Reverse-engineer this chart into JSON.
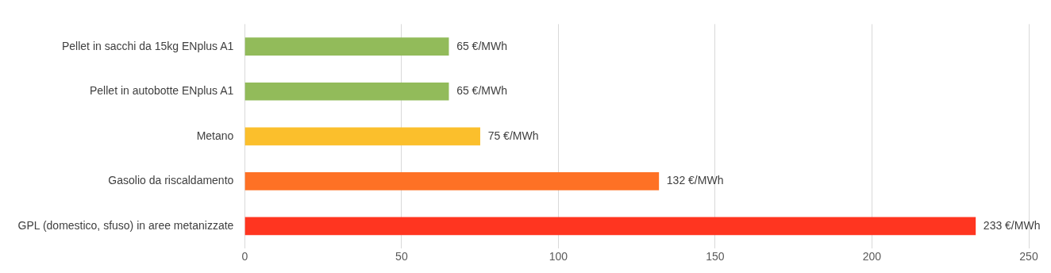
{
  "chart_data": {
    "type": "bar",
    "orientation": "horizontal",
    "categories": [
      "Pellet in sacchi da 15kg ENplus A1",
      "Pellet in autobotte ENplus A1",
      "Metano",
      "Gasolio da riscaldamento",
      "GPL (domestico, sfuso) in aree metanizzate"
    ],
    "values": [
      65,
      65,
      75,
      132,
      233
    ],
    "colors": [
      "#92bb5a",
      "#92bb5a",
      "#fbbf2c",
      "#fe7125",
      "#ff3520"
    ],
    "value_labels": [
      "65 €/MWh",
      "65 €/MWh",
      "75 €/MWh",
      "132 €/MWh",
      "233 €/MWh"
    ],
    "xlim": [
      0,
      250
    ],
    "xticks": [
      0,
      50,
      100,
      150,
      200,
      250
    ],
    "grid": "x",
    "legend": false
  }
}
